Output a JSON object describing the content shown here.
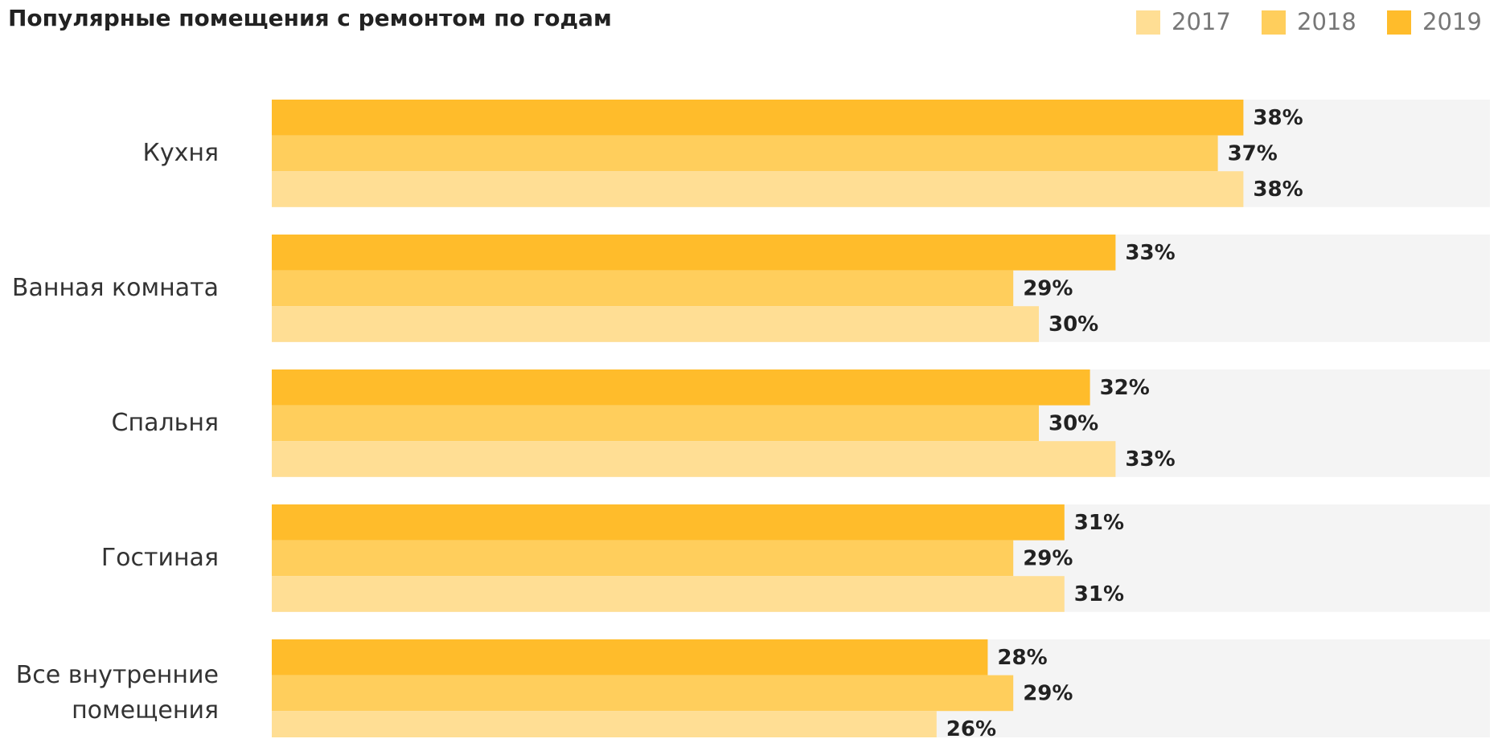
{
  "chart_data": {
    "type": "bar",
    "orientation": "horizontal",
    "title": "Популярные помещения с ремонтом по годам",
    "categories": [
      "Кухня",
      "Ванная комната",
      "Спальня",
      "Гостиная",
      "Все внутренние помещения"
    ],
    "series": [
      {
        "name": "2019",
        "color": "#ffbc2b",
        "values": [
          38,
          33,
          32,
          31,
          28
        ],
        "value_labels": [
          "38%",
          "33%",
          "32%",
          "31%",
          "28%"
        ]
      },
      {
        "name": "2018",
        "color": "#ffce5c",
        "values": [
          37,
          29,
          30,
          29,
          29
        ],
        "value_labels": [
          "37%",
          "29%",
          "30%",
          "29%",
          "29%"
        ]
      },
      {
        "name": "2017",
        "color": "#ffde94",
        "values": [
          38,
          30,
          33,
          31,
          26
        ],
        "value_labels": [
          "38%",
          "30%",
          "33%",
          "31%",
          "26%"
        ]
      }
    ],
    "legend_order": [
      "2017",
      "2018",
      "2019"
    ]
  }
}
